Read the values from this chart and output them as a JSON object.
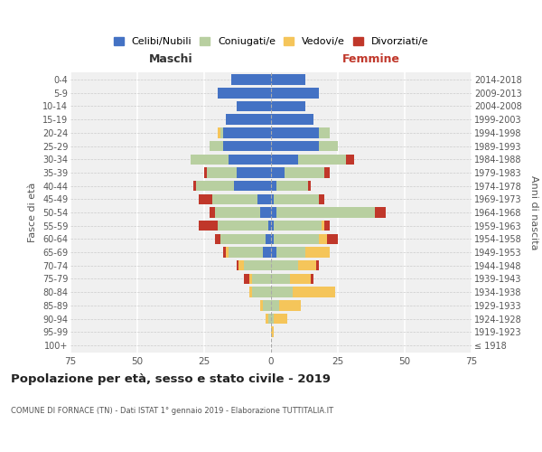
{
  "age_groups": [
    "100+",
    "95-99",
    "90-94",
    "85-89",
    "80-84",
    "75-79",
    "70-74",
    "65-69",
    "60-64",
    "55-59",
    "50-54",
    "45-49",
    "40-44",
    "35-39",
    "30-34",
    "25-29",
    "20-24",
    "15-19",
    "10-14",
    "5-9",
    "0-4"
  ],
  "birth_years": [
    "≤ 1918",
    "1919-1923",
    "1924-1928",
    "1929-1933",
    "1934-1938",
    "1939-1943",
    "1944-1948",
    "1949-1953",
    "1954-1958",
    "1959-1963",
    "1964-1968",
    "1969-1973",
    "1974-1978",
    "1979-1983",
    "1984-1988",
    "1989-1993",
    "1994-1998",
    "1999-2003",
    "2004-2008",
    "2009-2013",
    "2014-2018"
  ],
  "maschi": {
    "celibi": [
      0,
      0,
      0,
      0,
      0,
      0,
      0,
      3,
      2,
      1,
      4,
      5,
      14,
      13,
      16,
      18,
      18,
      17,
      13,
      20,
      15
    ],
    "coniugati": [
      0,
      0,
      1,
      3,
      7,
      7,
      10,
      13,
      17,
      19,
      17,
      17,
      14,
      11,
      14,
      5,
      1,
      0,
      0,
      0,
      0
    ],
    "vedovi": [
      0,
      0,
      1,
      1,
      1,
      1,
      2,
      1,
      0,
      0,
      0,
      0,
      0,
      0,
      0,
      0,
      1,
      0,
      0,
      0,
      0
    ],
    "divorziati": [
      0,
      0,
      0,
      0,
      0,
      2,
      1,
      1,
      2,
      7,
      2,
      5,
      1,
      1,
      0,
      0,
      0,
      0,
      0,
      0,
      0
    ]
  },
  "femmine": {
    "nubili": [
      0,
      0,
      0,
      0,
      0,
      0,
      0,
      2,
      1,
      1,
      2,
      1,
      2,
      5,
      10,
      18,
      18,
      16,
      13,
      18,
      13
    ],
    "coniugate": [
      0,
      0,
      1,
      3,
      8,
      7,
      10,
      11,
      17,
      18,
      37,
      17,
      12,
      15,
      18,
      7,
      4,
      0,
      0,
      0,
      0
    ],
    "vedove": [
      0,
      1,
      5,
      8,
      16,
      8,
      7,
      9,
      3,
      1,
      0,
      0,
      0,
      0,
      0,
      0,
      0,
      0,
      0,
      0,
      0
    ],
    "divorziate": [
      0,
      0,
      0,
      0,
      0,
      1,
      1,
      0,
      4,
      2,
      4,
      2,
      1,
      2,
      3,
      0,
      0,
      0,
      0,
      0,
      0
    ]
  },
  "colors": {
    "celibi": "#4472c4",
    "coniugati": "#b8cfa0",
    "vedovi": "#f5c55a",
    "divorziati": "#c0372a"
  },
  "xlim": 75,
  "title": "Popolazione per età, sesso e stato civile - 2019",
  "subtitle": "COMUNE DI FORNACE (TN) - Dati ISTAT 1° gennaio 2019 - Elaborazione TUTTITALIA.IT",
  "ylabel_left": "Fasce di età",
  "ylabel_right": "Anni di nascita",
  "xlabel_left": "Maschi",
  "xlabel_right": "Femmine",
  "legend_labels": [
    "Celibi/Nubili",
    "Coniugati/e",
    "Vedovi/e",
    "Divorziati/e"
  ],
  "bg_color": "#f0f0f0",
  "legend_marker_color": "#4472c4"
}
